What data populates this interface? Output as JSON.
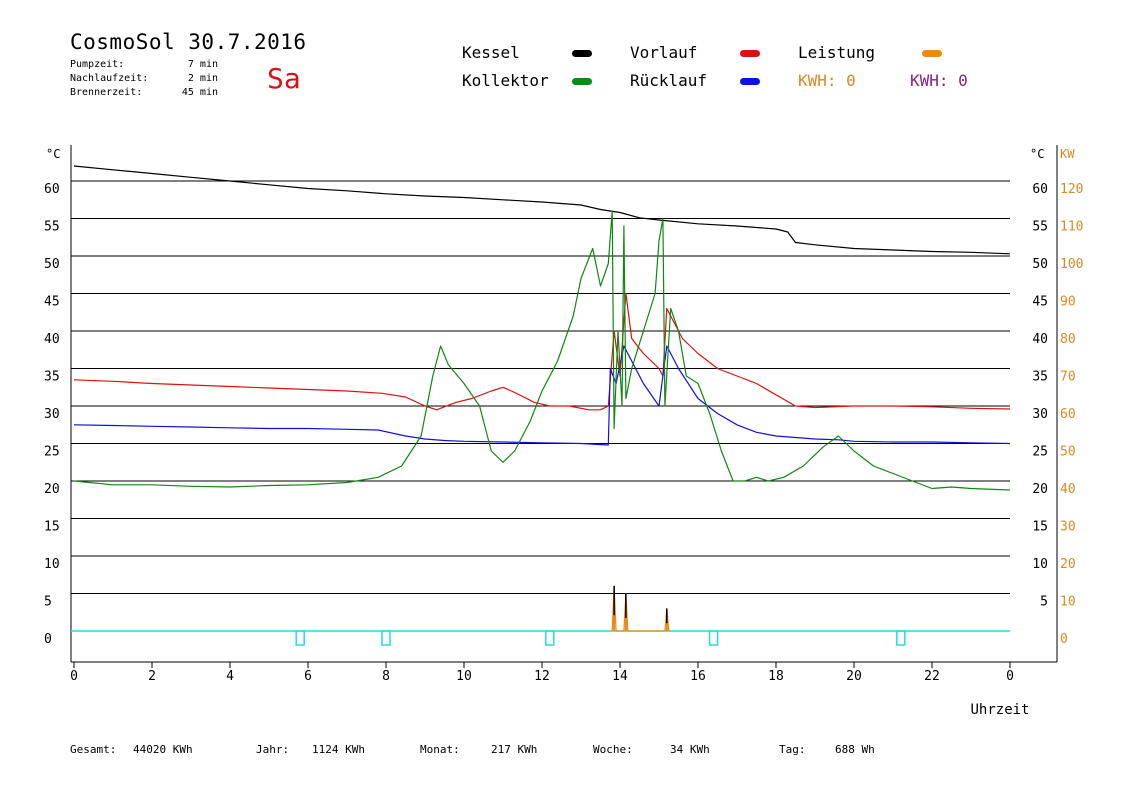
{
  "header": {
    "title": "CosmoSol 30.7.2016",
    "day": "Sa",
    "info": [
      {
        "label": "Pumpzeit:",
        "value": "7 min"
      },
      {
        "label": "Nachlaufzeit:",
        "value": "2 min"
      },
      {
        "label": "Brennerzeit:",
        "value": "45 min"
      }
    ]
  },
  "legend": {
    "kessel": {
      "label": "Kessel",
      "color": "#000000"
    },
    "kollektor": {
      "label": "Kollektor",
      "color": "#118811"
    },
    "vorlauf": {
      "label": "Vorlauf",
      "color": "#dd1111"
    },
    "ruecklauf": {
      "label": "Rücklauf",
      "color": "#1111dd"
    },
    "leistung": {
      "label": "Leistung",
      "color": "#ee8811"
    },
    "kwh1": {
      "text": "KWH: 0",
      "color": "#dd8822"
    },
    "kwh2": {
      "text": "KWH: 0",
      "color": "#882288"
    }
  },
  "footer": [
    {
      "label": "Gesamt:",
      "value": "44020 KWh"
    },
    {
      "label": "Jahr:",
      "value": "1124 KWh"
    },
    {
      "label": "Monat:",
      "value": "217 KWh"
    },
    {
      "label": "Woche:",
      "value": "34 KWh"
    },
    {
      "label": "Tag:",
      "value": "688 Wh"
    }
  ],
  "chart_data": {
    "type": "line",
    "xlabel": "Uhrzeit",
    "y_unit_left": "°C",
    "y_unit_right": "°C",
    "y2_unit": "KW",
    "xlim": [
      0,
      24
    ],
    "ylim": [
      -4,
      65
    ],
    "grid": true,
    "x_ticks": [
      "0",
      "2",
      "4",
      "6",
      "8",
      "10",
      "12",
      "14",
      "16",
      "18",
      "20",
      "22",
      "0"
    ],
    "y_ticks_left": [
      "60",
      "55",
      "50",
      "45",
      "40",
      "35",
      "30",
      "25",
      "20",
      "15",
      "10",
      "5",
      "0"
    ],
    "y_ticks_right": [
      "60",
      "55",
      "50",
      "45",
      "40",
      "35",
      "30",
      "25",
      "20",
      "15",
      "10",
      "5"
    ],
    "y2_ticks": [
      "120",
      "110",
      "100",
      "90",
      "80",
      "70",
      "60",
      "50",
      "40",
      "30",
      "20",
      "10",
      "0"
    ],
    "series": [
      {
        "name": "Kessel",
        "color": "#000000",
        "x": [
          0,
          1,
          2,
          3,
          4,
          5,
          6,
          7,
          8,
          9,
          10,
          11,
          12,
          13,
          13.5,
          14,
          14.5,
          15,
          16,
          17,
          18,
          18.3,
          18.5,
          19,
          20,
          21,
          22,
          23,
          24
        ],
        "y": [
          62,
          61.5,
          61,
          60.5,
          60,
          59.5,
          59,
          58.7,
          58.3,
          58,
          57.8,
          57.5,
          57.2,
          56.8,
          56.2,
          55.8,
          55.1,
          54.8,
          54.3,
          54,
          53.6,
          53.2,
          51.8,
          51.5,
          51,
          50.8,
          50.6,
          50.5,
          50.3
        ]
      },
      {
        "name": "Vorlauf",
        "color": "#dd1111",
        "x": [
          0,
          1,
          2,
          3,
          4,
          5,
          6,
          7,
          7.9,
          8.5,
          9,
          9.3,
          9.8,
          10.2,
          10.7,
          11,
          11.3,
          11.8,
          12.2,
          12.7,
          13.2,
          13.5,
          13.7,
          13.85,
          14,
          14.15,
          14.3,
          14.6,
          15,
          15.1,
          15.2,
          15.4,
          15.6,
          16,
          16.5,
          17,
          17.5,
          18,
          18.5,
          19,
          20,
          21,
          22,
          23,
          24
        ],
        "y": [
          33.5,
          33.3,
          33,
          32.8,
          32.6,
          32.4,
          32.2,
          32,
          31.7,
          31.2,
          30,
          29.5,
          30.5,
          31,
          32,
          32.5,
          31.8,
          30.5,
          30,
          30,
          29.5,
          29.5,
          30,
          40,
          34,
          45,
          39,
          37,
          35,
          34,
          43,
          41,
          39,
          37,
          35,
          34,
          33,
          31.5,
          30,
          29.8,
          30,
          30,
          29.9,
          29.7,
          29.6
        ]
      },
      {
        "name": "Rücklauf",
        "color": "#1111dd",
        "x": [
          0,
          1,
          2,
          3,
          4,
          5,
          6,
          7,
          7.8,
          8.5,
          9,
          9.5,
          10,
          11,
          12,
          13,
          13.7,
          13.75,
          13.9,
          14.1,
          14.3,
          14.6,
          15,
          15.1,
          15.2,
          15.5,
          16,
          16.5,
          17,
          17.5,
          18,
          19,
          19.6,
          20,
          21,
          22,
          23,
          24
        ],
        "y": [
          27.5,
          27.4,
          27.3,
          27.2,
          27.1,
          27,
          27,
          26.9,
          26.8,
          26,
          25.6,
          25.4,
          25.3,
          25.2,
          25.1,
          25,
          24.8,
          35,
          33,
          38,
          36,
          33,
          30,
          34,
          38,
          35,
          31,
          29,
          27.5,
          26.5,
          26,
          25.6,
          25.5,
          25.3,
          25.2,
          25.2,
          25.1,
          25
        ]
      },
      {
        "name": "Kollektor",
        "color": "#118811",
        "x": [
          0,
          1,
          2,
          3,
          4,
          5,
          6,
          7,
          7.8,
          8.4,
          8.9,
          9.2,
          9.4,
          9.6,
          10,
          10.4,
          10.7,
          11,
          11.3,
          11.7,
          12,
          12.4,
          12.8,
          13,
          13.3,
          13.5,
          13.7,
          13.8,
          13.85,
          13.95,
          14.05,
          14.1,
          14.15,
          14.3,
          14.6,
          14.9,
          15,
          15.1,
          15.15,
          15.3,
          15.5,
          15.7,
          16,
          16.3,
          16.6,
          16.9,
          17.2,
          17.5,
          17.8,
          18.2,
          18.7,
          19.2,
          19.6,
          20,
          20.5,
          21,
          21.5,
          22,
          22.5,
          23,
          24
        ],
        "y": [
          20,
          19.5,
          19.5,
          19.3,
          19.2,
          19.4,
          19.5,
          19.8,
          20.5,
          22,
          26,
          34,
          38,
          35.5,
          33,
          30,
          24,
          22.5,
          24,
          28,
          32,
          36,
          42,
          47,
          51,
          46,
          49,
          56,
          27,
          40,
          30,
          54,
          31,
          35,
          40,
          45,
          52,
          55,
          30,
          43,
          40,
          34,
          33,
          29,
          24,
          20,
          20,
          20.5,
          20,
          20.5,
          22,
          24.5,
          26,
          24,
          22,
          21,
          20,
          19,
          19.2,
          19,
          18.8
        ]
      },
      {
        "name": "Leistung",
        "color": "#ee8811",
        "x": [
          13.8,
          13.85,
          13.9,
          14.1,
          14.15,
          14.2,
          15.15,
          15.2,
          15.25
        ],
        "y": [
          0,
          6,
          0,
          0,
          5,
          0,
          0,
          3,
          0
        ]
      }
    ],
    "pump_markers_hours": [
      5.8,
      8.0,
      12.2,
      16.4,
      21.2
    ]
  }
}
